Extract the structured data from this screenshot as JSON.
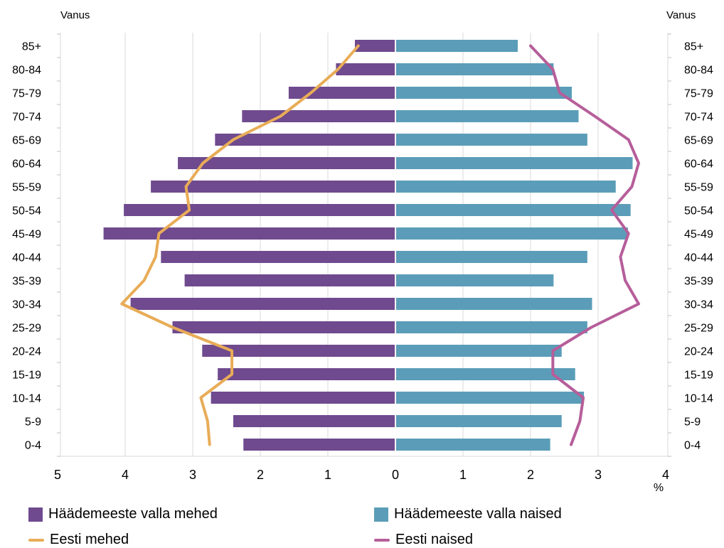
{
  "chart_data": {
    "type": "bar",
    "variant": "population-pyramid",
    "left_axis_title": "Vanus",
    "right_axis_title": "Vanus",
    "unit_label": "%",
    "categories": [
      "85+",
      "80-84",
      "75-79",
      "70-74",
      "65-69",
      "60-64",
      "55-59",
      "50-54",
      "45-49",
      "40-44",
      "35-39",
      "30-34",
      "25-29",
      "20-24",
      "15-19",
      "10-14",
      "5-9",
      "0-4"
    ],
    "x_ticks": [
      "5",
      "4",
      "3",
      "2",
      "1",
      "0",
      "1",
      "2",
      "3",
      "4"
    ],
    "xlim_left": [
      0,
      5
    ],
    "xlim_right": [
      0,
      4
    ],
    "grid": true,
    "legend_position": "bottom",
    "series": [
      {
        "name": "Häädemeeste valla mehed",
        "kind": "bar",
        "side": "left",
        "color": "#6f4a8e",
        "values": [
          0.6,
          0.88,
          1.58,
          2.27,
          2.67,
          3.22,
          3.62,
          4.02,
          4.32,
          3.47,
          3.12,
          3.92,
          3.3,
          2.86,
          2.63,
          2.73,
          2.4,
          2.25
        ]
      },
      {
        "name": "Häädemeeste valla naised",
        "kind": "bar",
        "side": "right",
        "color": "#5b9db8",
        "values": [
          1.8,
          2.33,
          2.6,
          2.7,
          2.83,
          3.5,
          3.25,
          3.47,
          3.43,
          2.83,
          2.33,
          2.9,
          2.83,
          2.45,
          2.65,
          2.78,
          2.45,
          2.28
        ]
      },
      {
        "name": "Eesti mehed",
        "kind": "line",
        "side": "left",
        "color": "#e8ac57",
        "values": [
          0.55,
          0.85,
          1.25,
          1.7,
          2.4,
          2.85,
          3.1,
          3.05,
          3.5,
          3.55,
          3.72,
          4.05,
          3.3,
          2.42,
          2.42,
          2.88,
          2.78,
          2.75
        ]
      },
      {
        "name": "Eesti naised",
        "kind": "line",
        "side": "right",
        "color": "#b65e9a",
        "values": [
          2.0,
          2.33,
          2.43,
          2.95,
          3.45,
          3.6,
          3.5,
          3.2,
          3.45,
          3.33,
          3.4,
          3.6,
          2.9,
          2.33,
          2.33,
          2.78,
          2.73,
          2.6
        ]
      }
    ]
  }
}
